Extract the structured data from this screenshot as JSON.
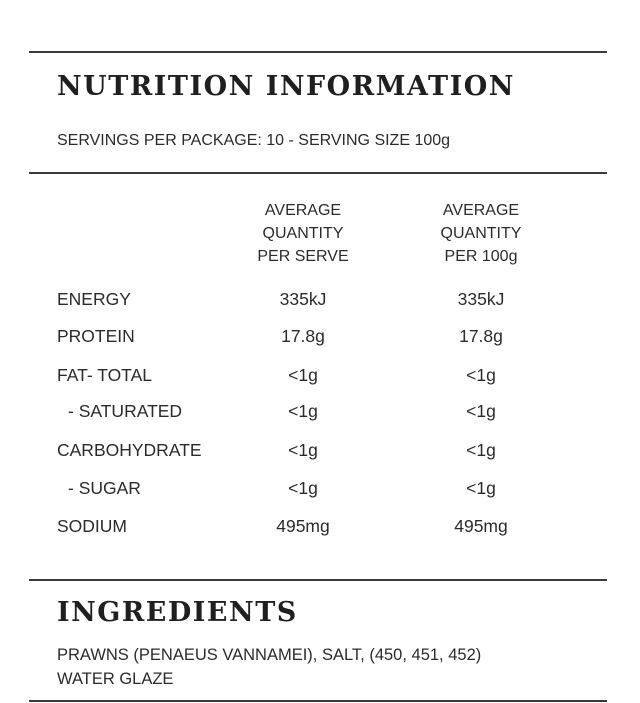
{
  "nutrition": {
    "title": "NUTRITION INFORMATION",
    "servings_line": "SERVINGS PER PACKAGE: 10 - SERVING SIZE 100g",
    "columns": [
      {
        "lines": [
          "AVERAGE",
          "QUANTITY",
          "PER SERVE"
        ]
      },
      {
        "lines": [
          "AVERAGE",
          "QUANTITY",
          "PER 100g"
        ]
      }
    ],
    "rows": [
      {
        "label": "ENERGY",
        "per_serve": "335kJ",
        "per_100g": "335kJ"
      },
      {
        "label": "PROTEIN",
        "per_serve": "17.8g",
        "per_100g": "17.8g"
      },
      {
        "label": "FAT- TOTAL",
        "per_serve": "<1g",
        "per_100g": "<1g"
      },
      {
        "label": "- SATURATED",
        "per_serve": "<1g",
        "per_100g": "<1g"
      },
      {
        "label": "CARBOHYDRATE",
        "per_serve": "<1g",
        "per_100g": "<1g"
      },
      {
        "label": "- SUGAR",
        "per_serve": "<1g",
        "per_100g": "<1g"
      },
      {
        "label": "SODIUM",
        "per_serve": "495mg",
        "per_100g": "495mg"
      }
    ]
  },
  "ingredients": {
    "title": "INGREDIENTS",
    "lines": [
      "PRAWNS (PENAEUS VANNAMEI), SALT, (450, 451, 452)",
      "WATER GLAZE"
    ]
  }
}
